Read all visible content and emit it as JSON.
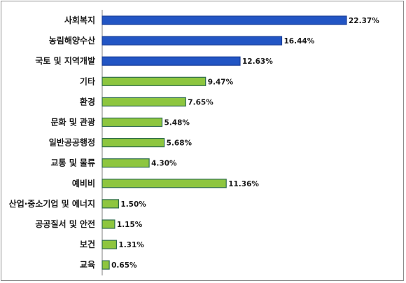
{
  "chart_data": {
    "type": "bar",
    "orientation": "horizontal",
    "categories": [
      "사회복지",
      "농림해양수산",
      "국토 및 지역개발",
      "기타",
      "환경",
      "문화 및 관광",
      "일반공공행정",
      "교통 및 물류",
      "예비비",
      "산업·중소기업 및 에너지",
      "공공질서 및 안전",
      "보건",
      "교육"
    ],
    "values": [
      22.37,
      16.44,
      12.63,
      9.47,
      7.65,
      5.48,
      5.68,
      4.3,
      11.36,
      1.5,
      1.15,
      1.31,
      0.65
    ],
    "value_labels": [
      "22.37%",
      "16.44%",
      "12.63%",
      "9.47%",
      "7.65%",
      "5.48%",
      "5.68%",
      "4.30%",
      "11.36%",
      "1.50%",
      "1.15%",
      "1.31%",
      "0.65%"
    ],
    "bar_colors": [
      "#2255c4",
      "#2255c4",
      "#2255c4",
      "#8dc63f",
      "#8dc63f",
      "#8dc63f",
      "#8dc63f",
      "#8dc63f",
      "#8dc63f",
      "#8dc63f",
      "#8dc63f",
      "#8dc63f",
      "#8dc63f"
    ],
    "bar_edge_colors": [
      "#1a3f99",
      "#1a3f99",
      "#1a3f99",
      "#2e6b4e",
      "#2e6b4e",
      "#2e6b4e",
      "#2e6b4e",
      "#2e6b4e",
      "#2e6b4e",
      "#2e6b4e",
      "#2e6b4e",
      "#2e6b4e",
      "#2e6b4e"
    ],
    "xlim": [
      0,
      25
    ],
    "title": "",
    "xlabel": "",
    "ylabel": "",
    "grid": false,
    "legend": "none"
  }
}
